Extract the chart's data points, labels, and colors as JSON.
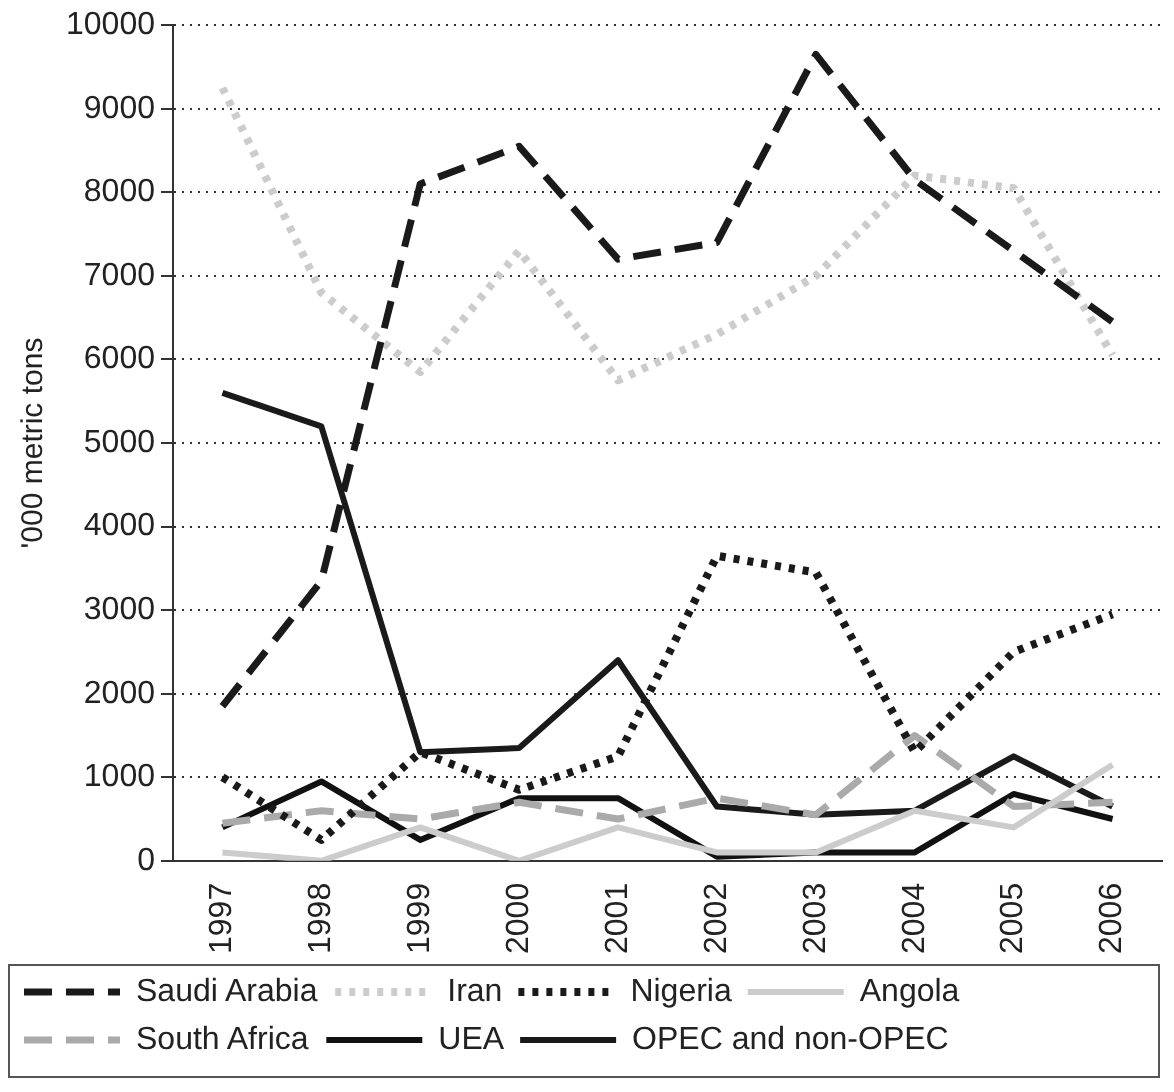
{
  "chart_data": {
    "type": "line",
    "ylabel": "'000 metric tons",
    "categories": [
      "1997",
      "1998",
      "1999",
      "2000",
      "2001",
      "2002",
      "2003",
      "2004",
      "2005",
      "2006"
    ],
    "series": [
      {
        "name": "Saudi Arabia",
        "color": "#1a1a1a",
        "line_style": "dashed",
        "values": [
          1850,
          3350,
          8100,
          8550,
          7200,
          7400,
          9650,
          8150,
          7300,
          6450
        ]
      },
      {
        "name": "Iran",
        "color": "#cccccc",
        "line_style": "dotted",
        "values": [
          9250,
          6800,
          5850,
          7300,
          5750,
          6300,
          7000,
          8200,
          8050,
          6050
        ]
      },
      {
        "name": "Nigeria",
        "color": "#1a1a1a",
        "line_style": "dotted",
        "values": [
          1000,
          250,
          1300,
          850,
          1250,
          3650,
          3450,
          1300,
          2500,
          2950
        ]
      },
      {
        "name": "Angola",
        "color": "#cccccc",
        "line_style": "solid",
        "values": [
          100,
          0,
          400,
          0,
          400,
          100,
          100,
          600,
          400,
          1150
        ]
      },
      {
        "name": "South Africa",
        "color": "#aaaaaa",
        "line_style": "dashed",
        "values": [
          450,
          600,
          500,
          700,
          500,
          750,
          550,
          1500,
          650,
          700
        ]
      },
      {
        "name": "UEA",
        "color": "#111111",
        "line_style": "solid",
        "values": [
          400,
          950,
          250,
          750,
          750,
          50,
          100,
          100,
          800,
          500
        ]
      },
      {
        "name": "OPEC and non-OPEC",
        "color": "#1a1a1a",
        "line_style": "solid",
        "values": [
          5600,
          5200,
          1300,
          1350,
          2400,
          650,
          550,
          600,
          1250,
          650
        ]
      }
    ],
    "ylim": [
      0,
      10000
    ],
    "yticks": [
      0,
      1000,
      2000,
      3000,
      4000,
      5000,
      6000,
      7000,
      8000,
      9000,
      10000
    ],
    "grid": "y",
    "legend": "bottom",
    "marker": "none"
  }
}
